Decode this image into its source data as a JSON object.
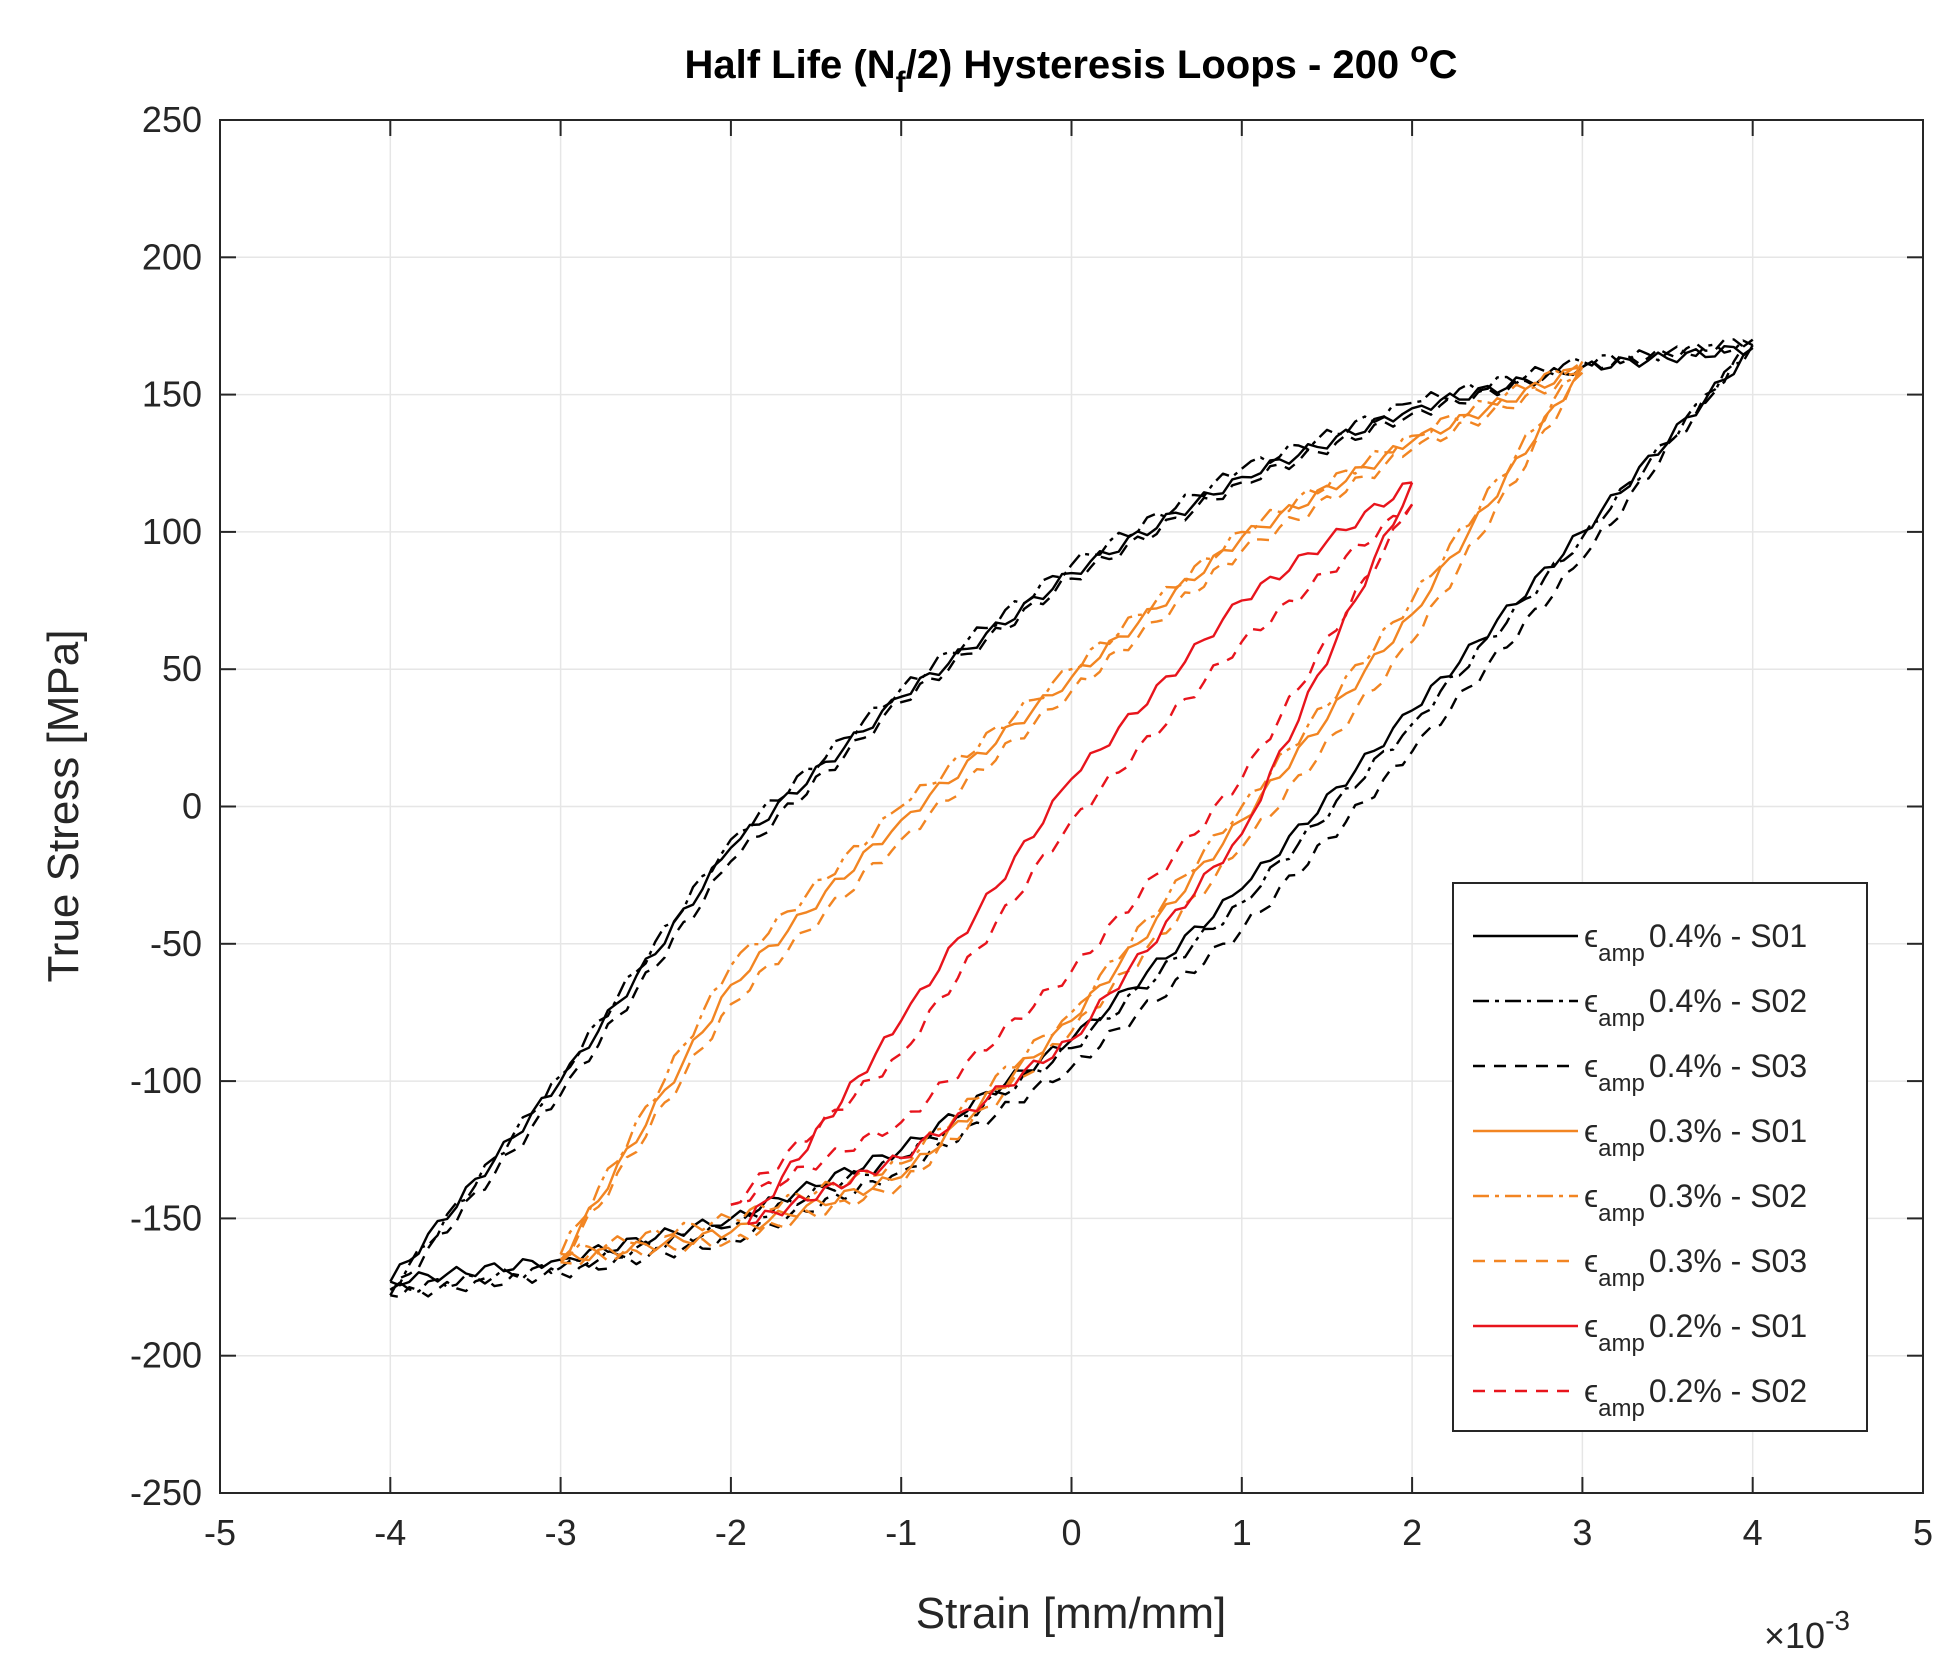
{
  "chart_data": {
    "type": "line",
    "title": {
      "main": "Half Life (N",
      "sub": "f",
      "rest": "/2) Hysteresis Loops - 200 ",
      "sup": "o",
      "unit": "C"
    },
    "xlabel": "Strain [mm/mm]",
    "ylabel": "True Stress [MPa]",
    "xlim": [
      -5,
      5
    ],
    "ylim": [
      -250,
      250
    ],
    "x_ticks": [
      "-5",
      "-4",
      "-3",
      "-2",
      "-1",
      "0",
      "1",
      "2",
      "3",
      "4",
      "5"
    ],
    "y_ticks": [
      "-250",
      "-200",
      "-150",
      "-100",
      "-50",
      "0",
      "50",
      "100",
      "150",
      "200",
      "250"
    ],
    "x_multiplier": {
      "base": "×10",
      "exp": "-3"
    },
    "grid": true,
    "legend_position": "lower-right",
    "legend_symbol": "ϵ",
    "legend_subscript": "amp",
    "series": [
      {
        "name": "0.4% - S01",
        "color": "#000000",
        "dash": "solid",
        "amp": 4,
        "peak_top": 167,
        "peak_bottom": -173,
        "upper": [
          [
            -4,
            -173
          ],
          [
            -3,
            -100
          ],
          [
            -2,
            -15
          ],
          [
            -1,
            40
          ],
          [
            0,
            85
          ],
          [
            1,
            120
          ],
          [
            2,
            145
          ],
          [
            3,
            160
          ],
          [
            4,
            167
          ]
        ],
        "lower": [
          [
            4,
            167
          ],
          [
            3,
            100
          ],
          [
            2,
            35
          ],
          [
            1,
            -30
          ],
          [
            0,
            -85
          ],
          [
            -1,
            -125
          ],
          [
            -2,
            -150
          ],
          [
            -3,
            -165
          ],
          [
            -4,
            -173
          ]
        ]
      },
      {
        "name": "0.4% - S02",
        "color": "#000000",
        "dash": "dashdot",
        "amp": 4,
        "peak_top": 168,
        "peak_bottom": -176,
        "upper": [
          [
            -4,
            -176
          ],
          [
            -3,
            -98
          ],
          [
            -2,
            -12
          ],
          [
            -1,
            43
          ],
          [
            0,
            88
          ],
          [
            1,
            123
          ],
          [
            2,
            147
          ],
          [
            3,
            162
          ],
          [
            4,
            168
          ]
        ],
        "lower": [
          [
            4,
            168
          ],
          [
            3,
            98
          ],
          [
            2,
            30
          ],
          [
            1,
            -35
          ],
          [
            0,
            -88
          ],
          [
            -1,
            -128
          ],
          [
            -2,
            -153
          ],
          [
            -3,
            -168
          ],
          [
            -4,
            -176
          ]
        ]
      },
      {
        "name": "0.4% - S03",
        "color": "#000000",
        "dash": "dashed",
        "amp": 4,
        "peak_top": 170,
        "peak_bottom": -178,
        "upper": [
          [
            -4,
            -178
          ],
          [
            -3,
            -105
          ],
          [
            -2,
            -20
          ],
          [
            -1,
            38
          ],
          [
            0,
            83
          ],
          [
            1,
            118
          ],
          [
            2,
            143
          ],
          [
            3,
            160
          ],
          [
            4,
            170
          ]
        ],
        "lower": [
          [
            4,
            170
          ],
          [
            3,
            90
          ],
          [
            2,
            20
          ],
          [
            1,
            -45
          ],
          [
            0,
            -95
          ],
          [
            -1,
            -133
          ],
          [
            -2,
            -158
          ],
          [
            -3,
            -170
          ],
          [
            -4,
            -178
          ]
        ]
      },
      {
        "name": "0.3% - S01",
        "color": "#f28522",
        "dash": "solid",
        "amp": 3,
        "peak_top": 160,
        "peak_bottom": -165,
        "upper": [
          [
            -3,
            -165
          ],
          [
            -2,
            -65
          ],
          [
            -1,
            -5
          ],
          [
            0,
            47
          ],
          [
            1,
            98
          ],
          [
            2,
            133
          ],
          [
            3,
            160
          ]
        ],
        "lower": [
          [
            3,
            160
          ],
          [
            2,
            70
          ],
          [
            1,
            -5
          ],
          [
            0,
            -78
          ],
          [
            -1,
            -135
          ],
          [
            -2,
            -155
          ],
          [
            -3,
            -165
          ]
        ]
      },
      {
        "name": "0.3% - S02",
        "color": "#f28522",
        "dash": "dashdot",
        "amp": 3,
        "peak_top": 162,
        "peak_bottom": -163,
        "upper": [
          [
            -3,
            -163
          ],
          [
            -2,
            -58
          ],
          [
            -1,
            0
          ],
          [
            0,
            50
          ],
          [
            1,
            100
          ],
          [
            2,
            135
          ],
          [
            3,
            162
          ]
        ],
        "lower": [
          [
            3,
            162
          ],
          [
            2,
            75
          ],
          [
            1,
            0
          ],
          [
            0,
            -75
          ],
          [
            -1,
            -130
          ],
          [
            -2,
            -150
          ],
          [
            -3,
            -163
          ]
        ]
      },
      {
        "name": "0.3% - S03",
        "color": "#f28522",
        "dash": "dashed",
        "amp": 3,
        "peak_top": 158,
        "peak_bottom": -166,
        "upper": [
          [
            -3,
            -166
          ],
          [
            -2,
            -72
          ],
          [
            -1,
            -12
          ],
          [
            0,
            42
          ],
          [
            1,
            93
          ],
          [
            2,
            130
          ],
          [
            3,
            158
          ]
        ],
        "lower": [
          [
            3,
            158
          ],
          [
            2,
            60
          ],
          [
            1,
            -15
          ],
          [
            0,
            -82
          ],
          [
            -1,
            -138
          ],
          [
            -2,
            -158
          ],
          [
            -3,
            -166
          ]
        ]
      },
      {
        "name": "0.2% - S01",
        "color": "#e8141c",
        "dash": "solid",
        "amp": 2,
        "peak_top": 118,
        "peak_bottom": -152,
        "upper": [
          [
            -1.9,
            -152
          ],
          [
            -1,
            -78
          ],
          [
            0,
            10
          ],
          [
            1,
            75
          ],
          [
            2,
            118
          ]
        ],
        "lower": [
          [
            2,
            118
          ],
          [
            1,
            -10
          ],
          [
            0,
            -85
          ],
          [
            -1,
            -128
          ],
          [
            -1.9,
            -152
          ]
        ]
      },
      {
        "name": "0.2% - S02",
        "color": "#e8141c",
        "dash": "dashed",
        "amp": 2,
        "peak_top": 110,
        "peak_bottom": -145,
        "upper": [
          [
            -2,
            -145
          ],
          [
            -1,
            -90
          ],
          [
            0,
            -5
          ],
          [
            1,
            60
          ],
          [
            2,
            110
          ]
        ],
        "lower": [
          [
            2,
            110
          ],
          [
            1,
            10
          ],
          [
            0,
            -60
          ],
          [
            -1,
            -115
          ],
          [
            -2,
            -145
          ]
        ]
      }
    ]
  }
}
